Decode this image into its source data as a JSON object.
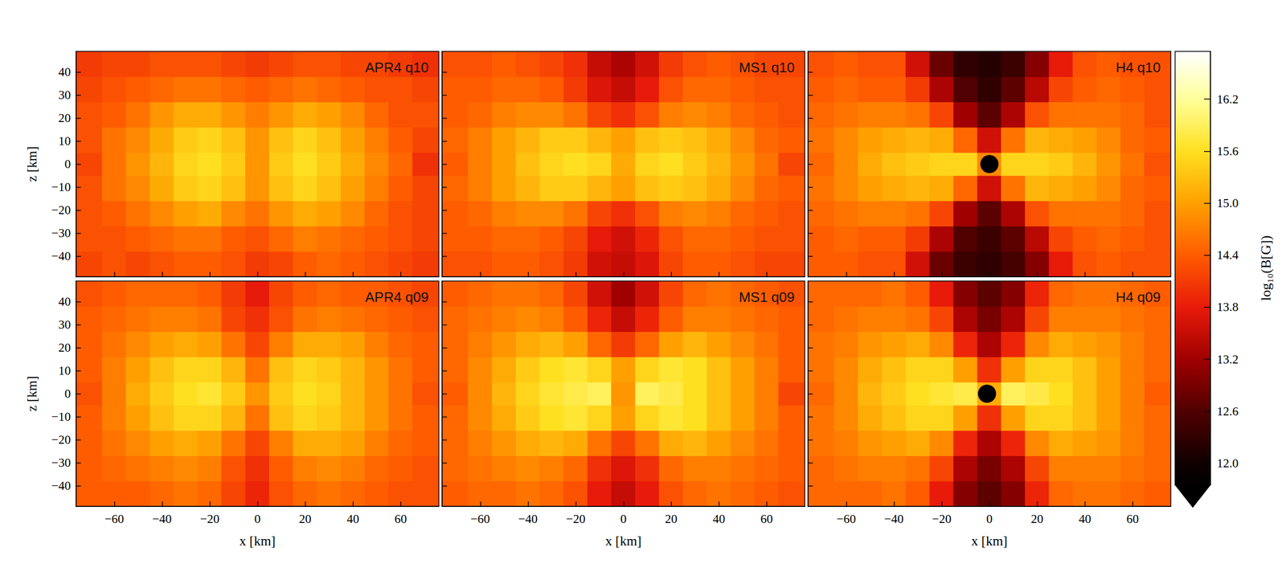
{
  "chart_data": {
    "type": "heatmap",
    "xlabel": "x [km]",
    "ylabel": "z [km]",
    "xlim": [
      -76,
      76
    ],
    "ylim": [
      -49,
      49
    ],
    "xticks": [
      {
        "value": -60,
        "label": "−60"
      },
      {
        "value": -40,
        "label": "−40"
      },
      {
        "value": -20,
        "label": "−20"
      },
      0,
      20,
      40,
      60
    ],
    "yticks": [
      {
        "value": -40,
        "label": "−40"
      },
      {
        "value": -30,
        "label": "−30"
      },
      {
        "value": -20,
        "label": "−20"
      },
      {
        "value": -10,
        "label": "−10"
      },
      0,
      10,
      20,
      30,
      40
    ],
    "grid": false,
    "x_bins": [
      -76,
      -65,
      -55,
      -45,
      -35,
      -25,
      -15,
      -5,
      5,
      15,
      25,
      35,
      45,
      55,
      65,
      76
    ],
    "z_bins": [
      -49,
      -38,
      -27,
      -16,
      -5,
      5,
      16,
      27,
      38,
      49
    ],
    "colorbar": {
      "label": "log₁₀(B[G])",
      "lim": [
        11.75,
        16.75
      ],
      "ticks": [
        {
          "value": 12,
          "label": "12.0"
        },
        12.6,
        13.2,
        13.8,
        14.4,
        {
          "value": 15,
          "label": "15.0"
        },
        15.6,
        16.2
      ]
    },
    "panels": [
      {
        "title": "APR4 q10",
        "tick_labels": "y",
        "values": [
          [
            14.2,
            14.3,
            14.2,
            14.3,
            14.4,
            14.4,
            14.3,
            14.1,
            14.2,
            14.4,
            14.5,
            14.4,
            14.3,
            14.2,
            14.1
          ],
          [
            14.3,
            14.3,
            14.4,
            14.5,
            14.6,
            14.6,
            14.4,
            14.3,
            14.5,
            14.7,
            14.6,
            14.5,
            14.4,
            14.3,
            14.2
          ],
          [
            14.3,
            14.4,
            14.6,
            14.8,
            15.0,
            15.1,
            14.8,
            14.6,
            14.9,
            15.1,
            15.0,
            14.8,
            14.5,
            14.3,
            14.2
          ],
          [
            14.3,
            14.6,
            14.8,
            15.1,
            15.4,
            15.5,
            15.3,
            14.9,
            15.3,
            15.5,
            15.3,
            15.0,
            14.7,
            14.4,
            14.2
          ],
          [
            14.2,
            14.6,
            14.9,
            15.2,
            15.5,
            15.6,
            15.4,
            14.9,
            15.4,
            15.6,
            15.4,
            15.1,
            14.8,
            14.5,
            14.0
          ],
          [
            14.3,
            14.6,
            14.8,
            15.1,
            15.4,
            15.5,
            15.3,
            14.9,
            15.3,
            15.5,
            15.3,
            15.0,
            14.7,
            14.4,
            14.2
          ],
          [
            14.3,
            14.4,
            14.6,
            14.9,
            15.1,
            15.1,
            14.9,
            14.7,
            14.9,
            15.1,
            15.0,
            14.8,
            14.5,
            14.3,
            14.3
          ],
          [
            14.2,
            14.3,
            14.4,
            14.5,
            14.6,
            14.6,
            14.5,
            14.4,
            14.5,
            14.6,
            14.5,
            14.4,
            14.3,
            14.3,
            14.2
          ],
          [
            14.1,
            14.2,
            14.2,
            14.3,
            14.3,
            14.3,
            14.2,
            14.1,
            14.2,
            14.3,
            14.3,
            14.2,
            14.2,
            14.1,
            14.0
          ]
        ]
      },
      {
        "title": "MS1 q10",
        "tick_labels": false,
        "values": [
          [
            14.3,
            14.3,
            14.4,
            14.4,
            14.3,
            14.1,
            13.6,
            13.5,
            13.7,
            14.2,
            14.4,
            14.4,
            14.3,
            14.2,
            14.2
          ],
          [
            14.4,
            14.4,
            14.5,
            14.5,
            14.4,
            14.2,
            13.8,
            13.6,
            13.9,
            14.3,
            14.5,
            14.5,
            14.4,
            14.3,
            14.3
          ],
          [
            14.4,
            14.5,
            14.7,
            14.8,
            14.8,
            14.6,
            14.2,
            14.0,
            14.3,
            14.7,
            14.8,
            14.7,
            14.5,
            14.4,
            14.3
          ],
          [
            14.5,
            14.7,
            15.0,
            15.2,
            15.4,
            15.4,
            15.2,
            15.0,
            15.3,
            15.4,
            15.3,
            15.1,
            14.8,
            14.5,
            14.4
          ],
          [
            14.4,
            14.7,
            15.0,
            15.3,
            15.5,
            15.6,
            15.5,
            15.1,
            15.5,
            15.6,
            15.4,
            15.2,
            14.9,
            14.6,
            14.2
          ],
          [
            14.5,
            14.7,
            15.0,
            15.2,
            15.4,
            15.4,
            15.2,
            15.0,
            15.3,
            15.4,
            15.3,
            15.1,
            14.8,
            14.5,
            14.4
          ],
          [
            14.4,
            14.5,
            14.7,
            14.8,
            14.8,
            14.6,
            14.2,
            14.0,
            14.3,
            14.7,
            14.8,
            14.7,
            14.5,
            14.4,
            14.3
          ],
          [
            14.4,
            14.4,
            14.5,
            14.5,
            14.4,
            14.1,
            13.7,
            13.5,
            13.8,
            14.3,
            14.5,
            14.5,
            14.4,
            14.3,
            14.3
          ],
          [
            14.3,
            14.3,
            14.4,
            14.3,
            14.2,
            14.0,
            13.5,
            13.3,
            13.6,
            14.1,
            14.3,
            14.4,
            14.3,
            14.2,
            14.2
          ]
        ]
      },
      {
        "title": "H4 q10",
        "tick_labels": false,
        "black_hole": {
          "x": 0,
          "z": 0,
          "radius": 3.8
        },
        "values": [
          [
            14.4,
            14.4,
            14.3,
            14.3,
            13.6,
            12.8,
            12.4,
            12.3,
            12.5,
            13.0,
            13.8,
            14.3,
            14.4,
            14.3,
            14.3
          ],
          [
            14.4,
            14.5,
            14.4,
            14.4,
            14.1,
            13.3,
            12.6,
            12.4,
            12.7,
            13.4,
            14.2,
            14.4,
            14.5,
            14.4,
            14.3
          ],
          [
            14.5,
            14.6,
            14.7,
            14.7,
            14.6,
            14.2,
            13.2,
            12.7,
            13.3,
            14.3,
            14.6,
            14.6,
            14.6,
            14.5,
            14.3
          ],
          [
            14.6,
            14.8,
            15.0,
            15.1,
            15.2,
            15.1,
            14.5,
            13.6,
            14.6,
            15.2,
            15.1,
            15.0,
            14.8,
            14.5,
            14.4
          ],
          [
            14.5,
            14.8,
            15.1,
            15.3,
            15.4,
            15.5,
            15.5,
            14.8,
            15.5,
            15.5,
            15.4,
            15.2,
            14.9,
            14.6,
            14.3
          ],
          [
            14.6,
            14.8,
            15.0,
            15.1,
            15.2,
            15.1,
            14.5,
            13.6,
            14.6,
            15.2,
            15.1,
            15.0,
            14.8,
            14.5,
            14.4
          ],
          [
            14.5,
            14.6,
            14.7,
            14.7,
            14.6,
            14.2,
            13.2,
            12.7,
            13.3,
            14.3,
            14.6,
            14.6,
            14.6,
            14.5,
            14.3
          ],
          [
            14.4,
            14.5,
            14.4,
            14.4,
            14.1,
            13.3,
            12.6,
            12.3,
            12.7,
            13.4,
            14.2,
            14.4,
            14.5,
            14.4,
            14.3
          ],
          [
            14.3,
            14.4,
            14.3,
            14.3,
            13.6,
            12.8,
            12.3,
            12.2,
            12.4,
            13.0,
            13.8,
            14.3,
            14.4,
            14.3,
            14.3
          ]
        ]
      },
      {
        "title": "APR4 q09",
        "tick_labels": true,
        "values": [
          [
            14.4,
            14.4,
            14.4,
            14.5,
            14.6,
            14.5,
            14.2,
            13.9,
            14.3,
            14.5,
            14.6,
            14.5,
            14.4,
            14.3,
            14.3
          ],
          [
            14.4,
            14.5,
            14.6,
            14.7,
            14.8,
            14.7,
            14.3,
            14.0,
            14.4,
            14.7,
            14.8,
            14.7,
            14.5,
            14.4,
            14.3
          ],
          [
            14.4,
            14.6,
            14.8,
            15.0,
            15.1,
            15.0,
            14.6,
            14.2,
            14.7,
            15.1,
            15.1,
            15.0,
            14.7,
            14.5,
            14.4
          ],
          [
            14.4,
            14.7,
            15.0,
            15.3,
            15.5,
            15.5,
            15.2,
            14.6,
            15.3,
            15.5,
            15.4,
            15.2,
            14.9,
            14.6,
            14.4
          ],
          [
            14.3,
            14.7,
            15.1,
            15.4,
            15.6,
            15.7,
            15.4,
            14.9,
            15.4,
            15.6,
            15.5,
            15.2,
            14.9,
            14.6,
            14.3
          ],
          [
            14.4,
            14.7,
            15.0,
            15.3,
            15.5,
            15.5,
            15.2,
            14.6,
            15.3,
            15.5,
            15.4,
            15.2,
            14.9,
            14.6,
            14.4
          ],
          [
            14.4,
            14.6,
            14.8,
            15.0,
            15.1,
            15.0,
            14.6,
            14.2,
            14.7,
            15.1,
            15.1,
            15.0,
            14.7,
            14.5,
            14.4
          ],
          [
            14.4,
            14.5,
            14.6,
            14.7,
            14.7,
            14.6,
            14.2,
            14.0,
            14.3,
            14.6,
            14.7,
            14.6,
            14.5,
            14.4,
            14.3
          ],
          [
            14.3,
            14.4,
            14.5,
            14.5,
            14.5,
            14.4,
            14.1,
            13.8,
            14.2,
            14.4,
            14.5,
            14.4,
            14.4,
            14.3,
            14.2
          ]
        ]
      },
      {
        "title": "MS1 q09",
        "tick_labels": "x",
        "values": [
          [
            14.4,
            14.5,
            14.5,
            14.6,
            14.5,
            14.3,
            13.8,
            13.5,
            13.8,
            14.3,
            14.5,
            14.6,
            14.5,
            14.4,
            14.3
          ],
          [
            14.5,
            14.6,
            14.7,
            14.8,
            14.7,
            14.5,
            14.0,
            13.7,
            14.0,
            14.5,
            14.7,
            14.7,
            14.6,
            14.5,
            14.4
          ],
          [
            14.5,
            14.7,
            14.9,
            15.1,
            15.2,
            15.1,
            14.6,
            14.2,
            14.6,
            15.1,
            15.2,
            15.0,
            14.8,
            14.6,
            14.4
          ],
          [
            14.5,
            14.8,
            15.1,
            15.4,
            15.6,
            15.7,
            15.5,
            15.0,
            15.5,
            15.7,
            15.6,
            15.3,
            15.0,
            14.7,
            14.4
          ],
          [
            14.4,
            14.8,
            15.2,
            15.5,
            15.7,
            15.8,
            15.9,
            14.9,
            15.9,
            15.8,
            15.6,
            15.3,
            15.0,
            14.7,
            14.2
          ],
          [
            14.5,
            14.8,
            15.1,
            15.4,
            15.6,
            15.7,
            15.5,
            15.0,
            15.5,
            15.7,
            15.6,
            15.3,
            15.0,
            14.7,
            14.4
          ],
          [
            14.5,
            14.7,
            14.9,
            15.1,
            15.2,
            15.0,
            14.5,
            14.1,
            14.5,
            15.0,
            15.2,
            15.0,
            14.8,
            14.6,
            14.4
          ],
          [
            14.5,
            14.6,
            14.7,
            14.8,
            14.7,
            14.4,
            13.9,
            13.5,
            13.9,
            14.4,
            14.7,
            14.7,
            14.6,
            14.5,
            14.4
          ],
          [
            14.4,
            14.5,
            14.6,
            14.6,
            14.5,
            14.2,
            13.6,
            13.2,
            13.6,
            14.2,
            14.5,
            14.6,
            14.5,
            14.4,
            14.3
          ]
        ]
      },
      {
        "title": "H4 q09",
        "tick_labels": "x",
        "black_hole": {
          "x": -1,
          "z": 0,
          "radius": 3.8
        },
        "values": [
          [
            14.5,
            14.5,
            14.5,
            14.6,
            14.4,
            13.8,
            13.0,
            12.7,
            13.0,
            13.9,
            14.5,
            14.6,
            14.6,
            14.5,
            14.4
          ],
          [
            14.5,
            14.6,
            14.7,
            14.7,
            14.6,
            14.2,
            13.3,
            12.9,
            13.3,
            14.2,
            14.7,
            14.7,
            14.7,
            14.6,
            14.5
          ],
          [
            14.6,
            14.7,
            14.9,
            15.0,
            15.1,
            14.8,
            13.9,
            13.3,
            13.9,
            14.8,
            15.1,
            15.0,
            14.9,
            14.7,
            14.5
          ],
          [
            14.6,
            14.8,
            15.1,
            15.3,
            15.5,
            15.5,
            15.0,
            14.0,
            15.0,
            15.5,
            15.5,
            15.3,
            15.0,
            14.7,
            14.5
          ],
          [
            14.5,
            14.8,
            15.2,
            15.4,
            15.6,
            15.7,
            15.8,
            15.1,
            15.9,
            15.8,
            15.6,
            15.3,
            15.0,
            14.7,
            14.4
          ],
          [
            14.6,
            14.8,
            15.1,
            15.3,
            15.5,
            15.5,
            15.0,
            14.0,
            15.0,
            15.5,
            15.5,
            15.3,
            15.0,
            14.7,
            14.5
          ],
          [
            14.6,
            14.7,
            14.9,
            15.0,
            15.1,
            14.8,
            13.9,
            13.3,
            13.9,
            14.8,
            15.1,
            15.0,
            14.9,
            14.7,
            14.5
          ],
          [
            14.5,
            14.6,
            14.7,
            14.7,
            14.6,
            14.2,
            13.3,
            12.9,
            13.3,
            14.2,
            14.7,
            14.7,
            14.7,
            14.6,
            14.5
          ],
          [
            14.5,
            14.5,
            14.5,
            14.6,
            14.4,
            13.8,
            13.0,
            12.7,
            13.0,
            13.9,
            14.5,
            14.6,
            14.6,
            14.5,
            14.4
          ]
        ]
      }
    ]
  }
}
